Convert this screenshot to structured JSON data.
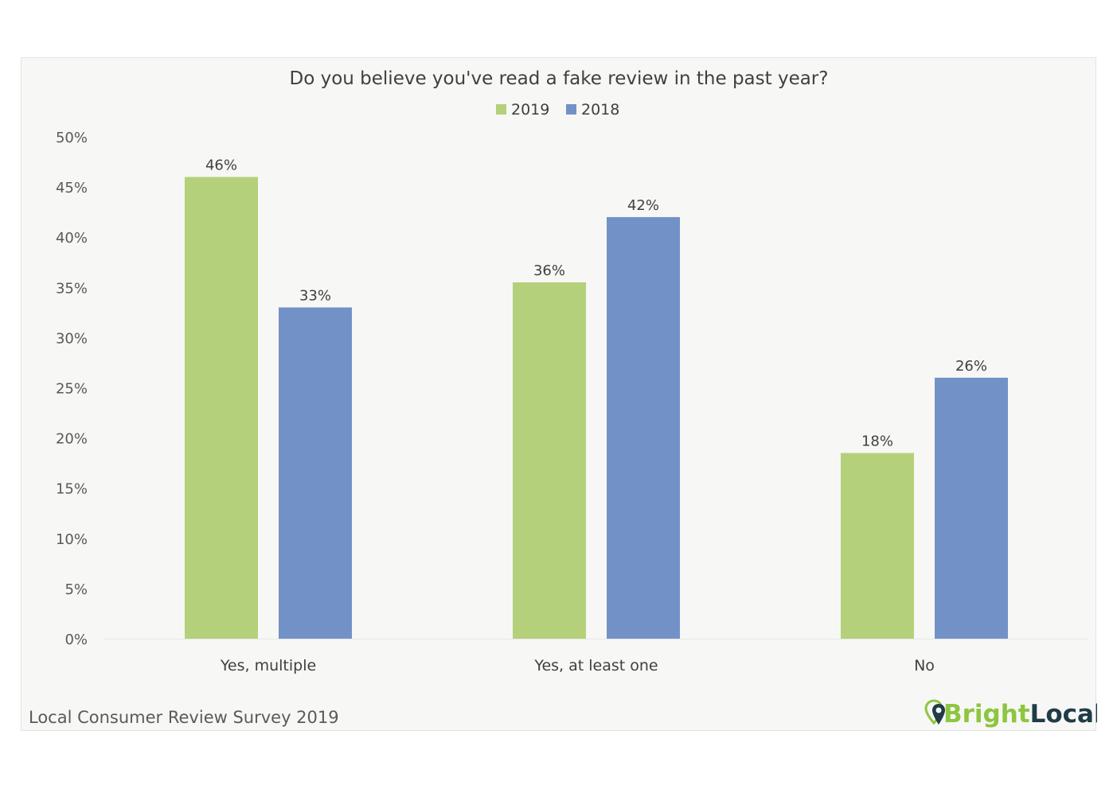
{
  "chart_data": {
    "type": "bar",
    "title": "Do you believe you've read a fake review in the past year?",
    "categories": [
      "Yes, multiple",
      "Yes, at least one",
      "No"
    ],
    "series": [
      {
        "name": "2019",
        "color": "#b5d07a",
        "values": [
          46,
          35.5,
          18.5
        ],
        "labels": [
          "46%",
          "36%",
          "18%"
        ]
      },
      {
        "name": "2018",
        "color": "#7292c7",
        "values": [
          33,
          42,
          26
        ],
        "labels": [
          "33%",
          "42%",
          "26%"
        ]
      }
    ],
    "y_ticks": [
      0,
      5,
      10,
      15,
      20,
      25,
      30,
      35,
      40,
      45,
      50
    ],
    "y_tick_labels": [
      "0%",
      "5%",
      "10%",
      "15%",
      "20%",
      "25%",
      "30%",
      "35%",
      "40%",
      "45%",
      "50%"
    ],
    "ylim": [
      0,
      50
    ],
    "xlabel": "",
    "ylabel": "",
    "grid": false,
    "legend_position": "top-center"
  },
  "footer": {
    "source": "Local Consumer Review Survey 2019",
    "logo_part1": "Bright",
    "logo_part2": "Local",
    "logo_icon": "map-pin-icon"
  }
}
